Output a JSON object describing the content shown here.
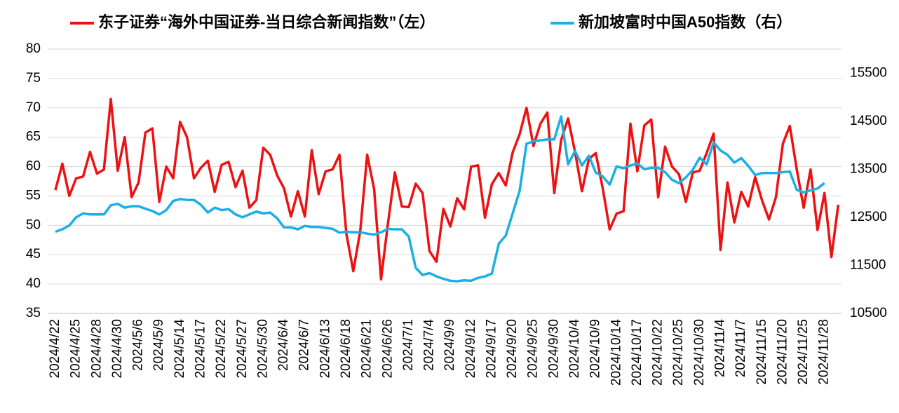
{
  "chart_data": {
    "type": "line",
    "categories": [
      "2024/4/22",
      null,
      null,
      "2024/4/25",
      null,
      null,
      "2024/4/28",
      null,
      null,
      "2024/4/30",
      null,
      null,
      "2024/5/6",
      null,
      null,
      "2024/5/9",
      null,
      null,
      "2024/5/14",
      null,
      null,
      "2024/5/17",
      null,
      null,
      "2024/5/22",
      null,
      null,
      "2024/5/27",
      null,
      null,
      "2024/5/30",
      null,
      null,
      "2024/6/4",
      null,
      null,
      "2024/6/7",
      null,
      null,
      "2024/6/13",
      null,
      null,
      "2024/6/18",
      null,
      null,
      "2024/6/21",
      null,
      null,
      "2024/6/26",
      null,
      null,
      "2024/7/1",
      null,
      null,
      "2024/7/4",
      null,
      null,
      "2024/9/9",
      null,
      null,
      "2024/9/12",
      null,
      null,
      "2024/9/17",
      null,
      null,
      "2024/9/20",
      null,
      null,
      "2024/9/25",
      null,
      null,
      "2024/9/30",
      null,
      null,
      "2024/10/4",
      null,
      null,
      "2024/10/9",
      null,
      null,
      "2024/10/14",
      null,
      null,
      "2024/10/17",
      null,
      null,
      "2024/10/22",
      null,
      null,
      "2024/10/25",
      null,
      null,
      "2024/10/30",
      null,
      null,
      "2024/11/4",
      null,
      null,
      "2024/11/7",
      null,
      null,
      "2024/11/15",
      null,
      null,
      "2024/11/20",
      null,
      null,
      "2024/11/25",
      null,
      null,
      "2024/11/28",
      null,
      null
    ],
    "series": [
      {
        "name": "东子证券“海外中国证券-当日综合新闻指数”（左）",
        "color": "#ee1111",
        "axis": "y",
        "values": [
          56,
          60.5,
          55,
          58,
          58.3,
          62.5,
          58.8,
          59.5,
          71.5,
          59.3,
          65,
          54.8,
          57.3,
          65.8,
          66.5,
          54,
          60,
          58,
          67.6,
          65,
          58,
          59.8,
          61,
          55.7,
          60.3,
          60.8,
          56.5,
          59.3,
          53,
          54.3,
          63.2,
          62,
          58.5,
          56.3,
          51.5,
          55.8,
          51.5,
          62.8,
          55.3,
          59.2,
          59.5,
          62,
          48.5,
          42.2,
          49,
          62,
          56.2,
          40.8,
          50.3,
          59,
          53.2,
          53.1,
          57.1,
          55.5,
          45.6,
          43.8,
          52.8,
          49.8,
          54.6,
          52.7,
          60,
          60.2,
          51.3,
          57,
          58.9,
          56.8,
          62.4,
          65.5,
          70,
          63.5,
          67.3,
          69.2,
          55.5,
          64.5,
          68.2,
          62.5,
          55.8,
          61.3,
          62.3,
          56.3,
          49.3,
          52,
          52.4,
          67.3,
          59.2,
          67,
          68,
          54.8,
          63.4,
          60,
          58.7,
          54,
          59,
          59.3,
          62.3,
          65.6,
          45.8,
          57.3,
          50.5,
          55.7,
          53.2,
          58.2,
          54.2,
          51,
          54.8,
          63.9,
          66.9,
          59.5,
          53,
          59.5,
          49.2,
          55.5,
          44.6,
          53.5
        ]
      },
      {
        "name": "新加坡富时中国A50指数（右）",
        "color": "#1aafe6",
        "axis": "y2",
        "values": [
          12200,
          12250,
          12330,
          12500,
          12580,
          12560,
          12560,
          12560,
          12750,
          12780,
          12700,
          12730,
          12730,
          12680,
          12630,
          12560,
          12650,
          12840,
          12880,
          12860,
          12860,
          12760,
          12600,
          12700,
          12650,
          12670,
          12560,
          12500,
          12560,
          12620,
          12580,
          12600,
          12480,
          12290,
          12290,
          12250,
          12320,
          12300,
          12300,
          12280,
          12260,
          12180,
          12200,
          12190,
          12190,
          12160,
          12140,
          12190,
          12260,
          12250,
          12250,
          12100,
          11450,
          11300,
          11340,
          11270,
          11220,
          11180,
          11170,
          11190,
          11180,
          11240,
          11270,
          11330,
          11950,
          12120,
          12580,
          13050,
          14030,
          14080,
          14100,
          14120,
          14120,
          14600,
          13600,
          13880,
          13580,
          13780,
          13430,
          13350,
          13180,
          13560,
          13520,
          13580,
          13620,
          13500,
          13530,
          13530,
          13440,
          13280,
          13210,
          13330,
          13490,
          13740,
          13600,
          14060,
          13890,
          13800,
          13640,
          13730,
          13570,
          13380,
          13420,
          13420,
          13420,
          13440,
          13450,
          13070,
          13020,
          13060,
          13100,
          13210,
          null,
          null
        ]
      }
    ],
    "ylim": [
      35,
      80
    ],
    "yticks": [
      35,
      40,
      45,
      50,
      55,
      60,
      65,
      70,
      75,
      80
    ],
    "y2lim": [
      10500,
      16000
    ],
    "y2ticks": [
      10500,
      11500,
      12500,
      13500,
      14500,
      15500
    ],
    "grid": true
  }
}
